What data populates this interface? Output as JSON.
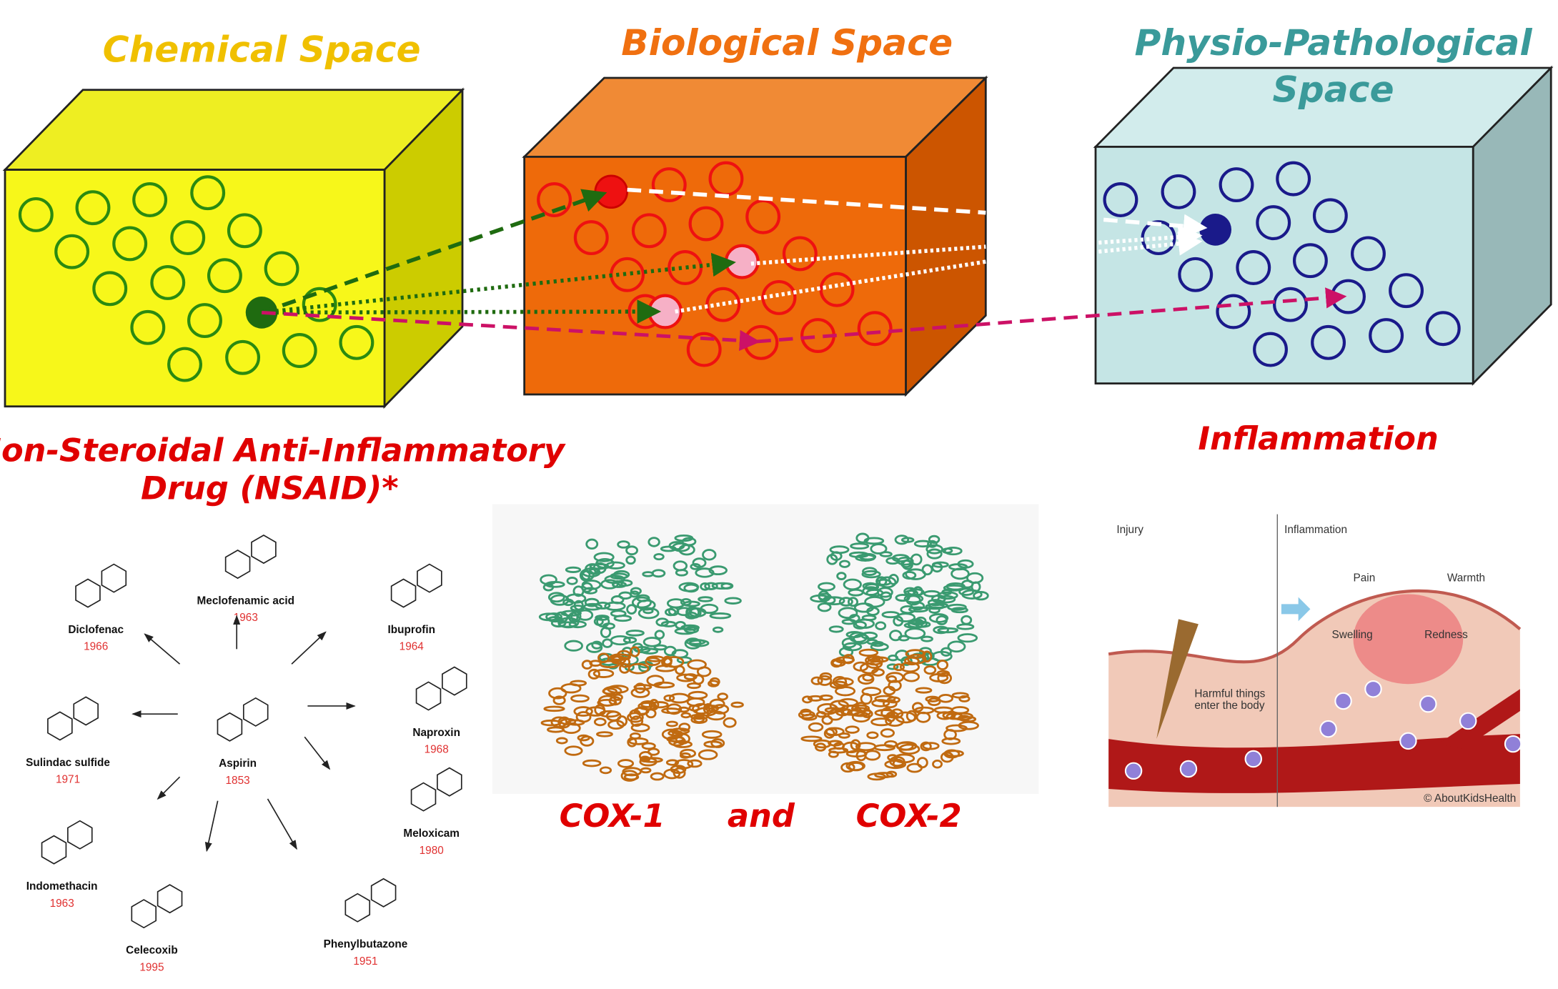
{
  "spaces": [
    {
      "title_lines": [
        "Chemical Space"
      ]
    },
    {
      "title_lines": [
        "Biological Space"
      ]
    },
    {
      "title_lines": [
        "Physio-Pathological",
        "Space"
      ]
    }
  ],
  "drug_caption_lines": [
    "Non-Steroidal Anti-Inflammatory",
    "Drug (NSAID)*"
  ],
  "disease_caption": "Inflammation",
  "drugs": [
    {
      "name": "Aspirin",
      "year": "1853"
    },
    {
      "name": "Diclofenac",
      "year": "1966"
    },
    {
      "name": "Meclofenamic acid",
      "year": "1963"
    },
    {
      "name": "Ibuprofin",
      "year": "1964"
    },
    {
      "name": "Sulindac sulfide",
      "year": "1971"
    },
    {
      "name": "Naproxin",
      "year": "1968"
    },
    {
      "name": "Meloxicam",
      "year": "1980"
    },
    {
      "name": "Indomethacin",
      "year": "1963"
    },
    {
      "name": "Celecoxib",
      "year": "1995"
    },
    {
      "name": "Phenylbutazone",
      "year": "1951"
    }
  ],
  "proteins": {
    "first": "COX-1",
    "joiner": "and",
    "second": "COX-2"
  },
  "inflammation_panel": {
    "left_label": "Injury",
    "right_label": "Inflammation",
    "pain": "Pain",
    "warmth": "Warmth",
    "swelling": "Swelling",
    "redness": "Redness",
    "entry": [
      "Harmful things",
      "enter the body"
    ],
    "credit": "© AboutKidsHealth"
  }
}
